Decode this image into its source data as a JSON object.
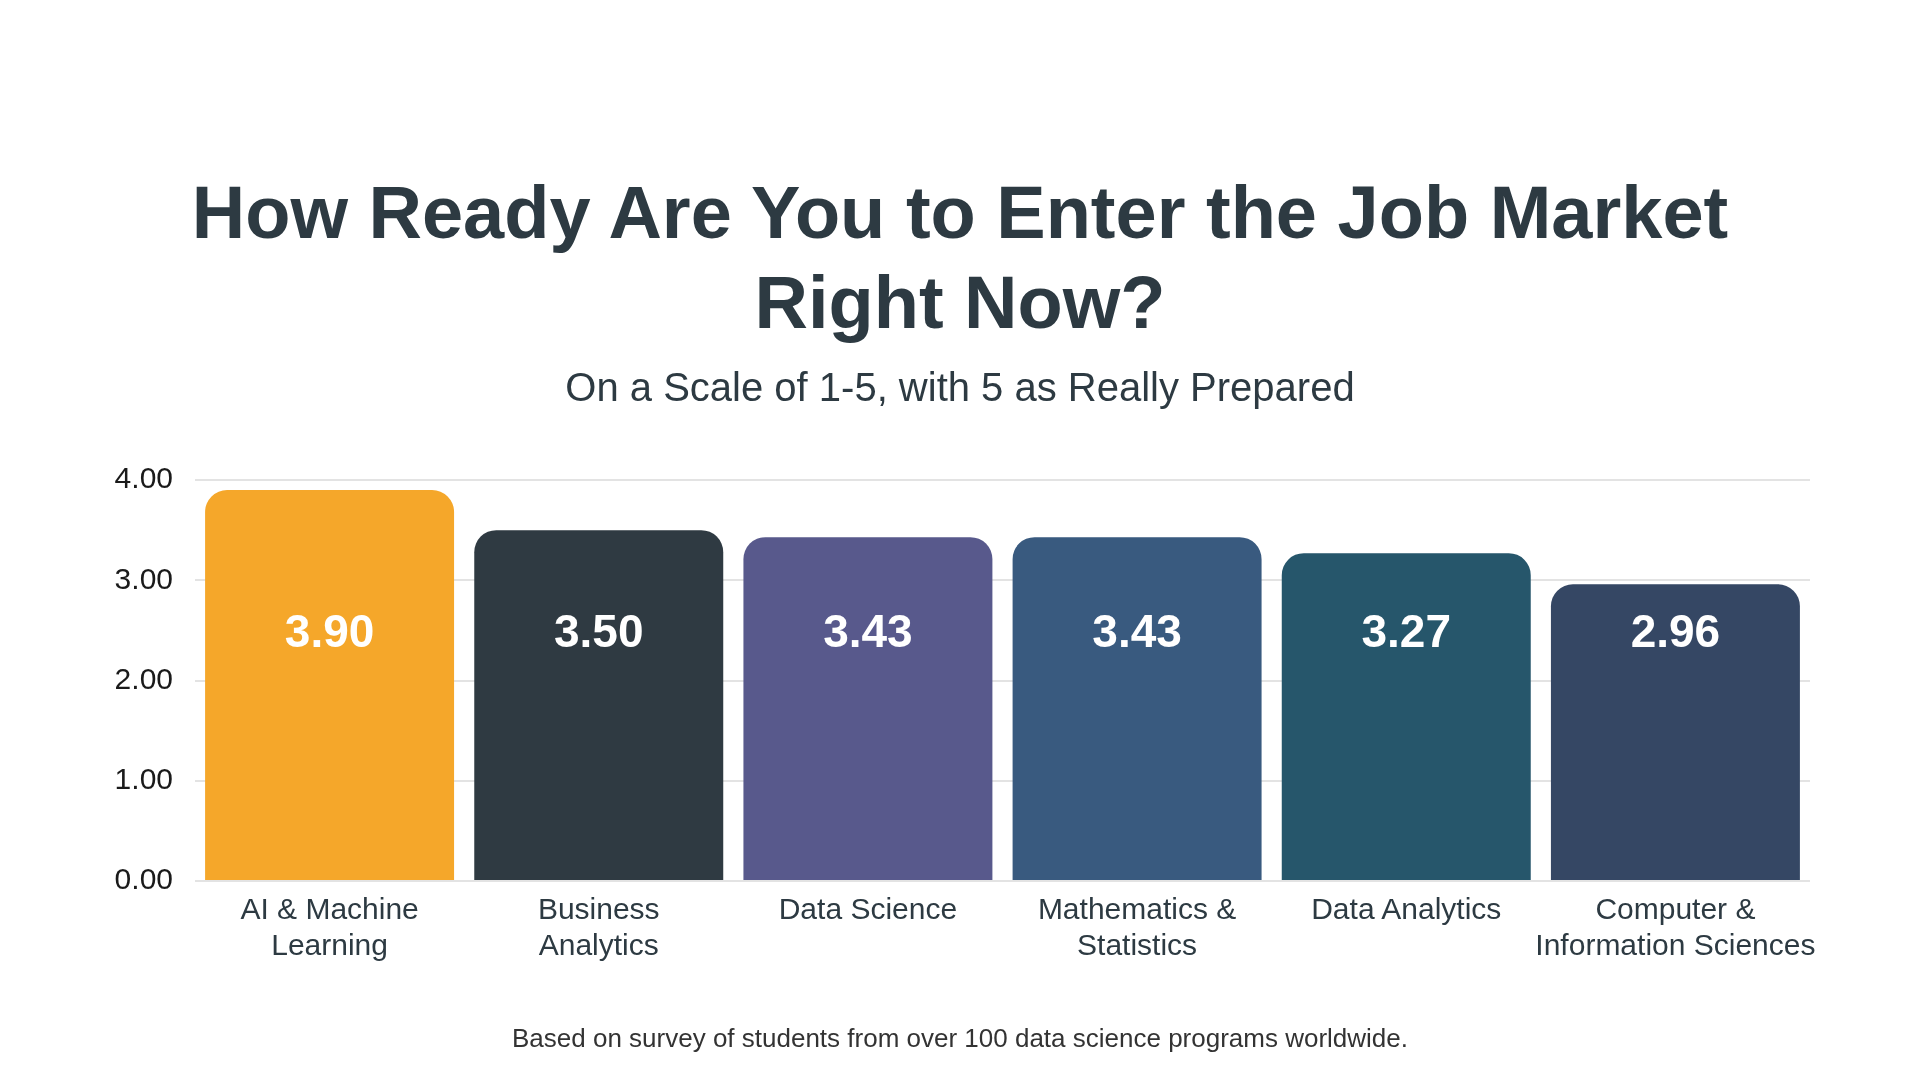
{
  "chart_data": {
    "type": "bar",
    "title": "How Ready Are You to Enter the Job Market Right Now?",
    "subtitle": "On a Scale of 1-5, with 5 as Really Prepared",
    "categories": [
      "AI & Machine Learning",
      "Business Analytics",
      "Data Science",
      "Mathematics & Statistics",
      "Data Analytics",
      "Computer & Information Sciences"
    ],
    "values": [
      3.9,
      3.5,
      3.43,
      3.43,
      3.27,
      2.96
    ],
    "colors": [
      "#f5a72a",
      "#2f3a42",
      "#58598c",
      "#395a7f",
      "#26566b",
      "#354764"
    ],
    "value_labels": [
      "3.90",
      "3.50",
      "3.43",
      "3.43",
      "3.27",
      "2.96"
    ],
    "ylim": [
      0,
      4
    ],
    "yticks": [
      {
        "value": 0,
        "label": "0.00"
      },
      {
        "value": 1,
        "label": "1.00"
      },
      {
        "value": 2,
        "label": "2.00"
      },
      {
        "value": 3,
        "label": "3.00"
      },
      {
        "value": 4,
        "label": "4.00"
      }
    ],
    "grid": "y",
    "annotations": [
      "Based on survey of students from over 100 data science programs worldwide."
    ]
  }
}
